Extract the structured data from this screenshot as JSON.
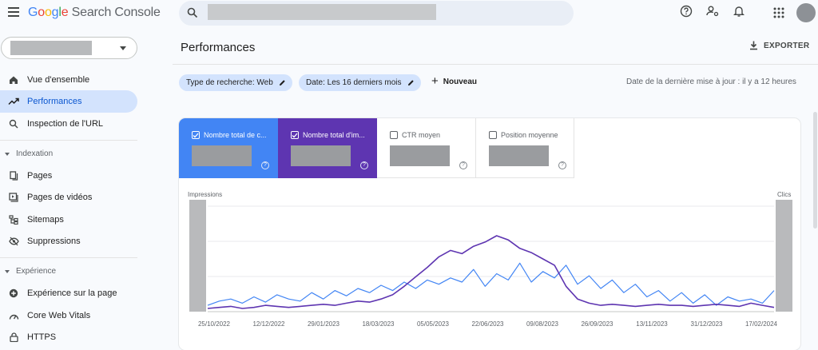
{
  "app": {
    "brand_letters": [
      "G",
      "o",
      "o",
      "g",
      "l",
      "e"
    ],
    "product": "Search Console"
  },
  "sidebar": {
    "items_top": [
      {
        "label": "Vue d'ensemble",
        "icon": "home-icon"
      },
      {
        "label": "Performances",
        "icon": "trending-up-icon",
        "active": true
      },
      {
        "label": "Inspection de l'URL",
        "icon": "search-icon"
      }
    ],
    "section_indexation": "Indexation",
    "items_indexation": [
      {
        "label": "Pages",
        "icon": "pages-icon"
      },
      {
        "label": "Pages de vidéos",
        "icon": "video-pages-icon"
      },
      {
        "label": "Sitemaps",
        "icon": "sitemap-icon"
      },
      {
        "label": "Suppressions",
        "icon": "visibility-off-icon"
      }
    ],
    "section_experience": "Expérience",
    "items_experience": [
      {
        "label": "Expérience sur la page",
        "icon": "add-circle-icon"
      },
      {
        "label": "Core Web Vitals",
        "icon": "speed-icon"
      },
      {
        "label": "HTTPS",
        "icon": "lock-icon"
      }
    ]
  },
  "header": {
    "title": "Performances",
    "export_label": "EXPORTER"
  },
  "filters": {
    "search_type": "Type de recherche: Web",
    "date": "Date: Les 16 derniers mois",
    "new_label": "Nouveau",
    "last_update": "Date de la dernière mise à jour : il y a 12 heures"
  },
  "metrics": [
    {
      "label": "Nombre total de c...",
      "checked": true
    },
    {
      "label": "Nombre total d'im...",
      "checked": true
    },
    {
      "label": "CTR moyen",
      "checked": false
    },
    {
      "label": "Position moyenne",
      "checked": false
    }
  ],
  "colors": {
    "clicks": "#4285f4",
    "impressions": "#5e35b1",
    "accent": "#0b57d0"
  },
  "chart_data": {
    "type": "line",
    "left_axis_label": "Impressions",
    "right_axis_label": "Clics",
    "x_tick_labels": [
      "25/10/2022",
      "12/12/2022",
      "29/01/2023",
      "18/03/2023",
      "05/05/2023",
      "22/06/2023",
      "09/08/2023",
      "26/09/2023",
      "13/11/2023",
      "31/12/2023",
      "17/02/2024"
    ],
    "y_range": [
      0,
      100
    ],
    "series": [
      {
        "name": "Impressions",
        "values": [
          3,
          4,
          5,
          3,
          4,
          6,
          5,
          4,
          5,
          6,
          7,
          6,
          8,
          10,
          9,
          12,
          16,
          24,
          33,
          42,
          52,
          58,
          55,
          62,
          66,
          72,
          68,
          60,
          56,
          50,
          44,
          24,
          12,
          8,
          6,
          7,
          6,
          5,
          6,
          7,
          6,
          6,
          5,
          6,
          7,
          6,
          5,
          8,
          6,
          4
        ]
      },
      {
        "name": "Clics",
        "values": [
          6,
          10,
          12,
          8,
          14,
          9,
          16,
          12,
          10,
          18,
          12,
          20,
          15,
          22,
          18,
          25,
          20,
          28,
          22,
          30,
          26,
          32,
          28,
          40,
          24,
          36,
          30,
          46,
          28,
          38,
          32,
          44,
          26,
          34,
          22,
          30,
          18,
          26,
          14,
          20,
          10,
          18,
          8,
          16,
          6,
          14,
          10,
          12,
          8,
          20
        ]
      }
    ]
  }
}
